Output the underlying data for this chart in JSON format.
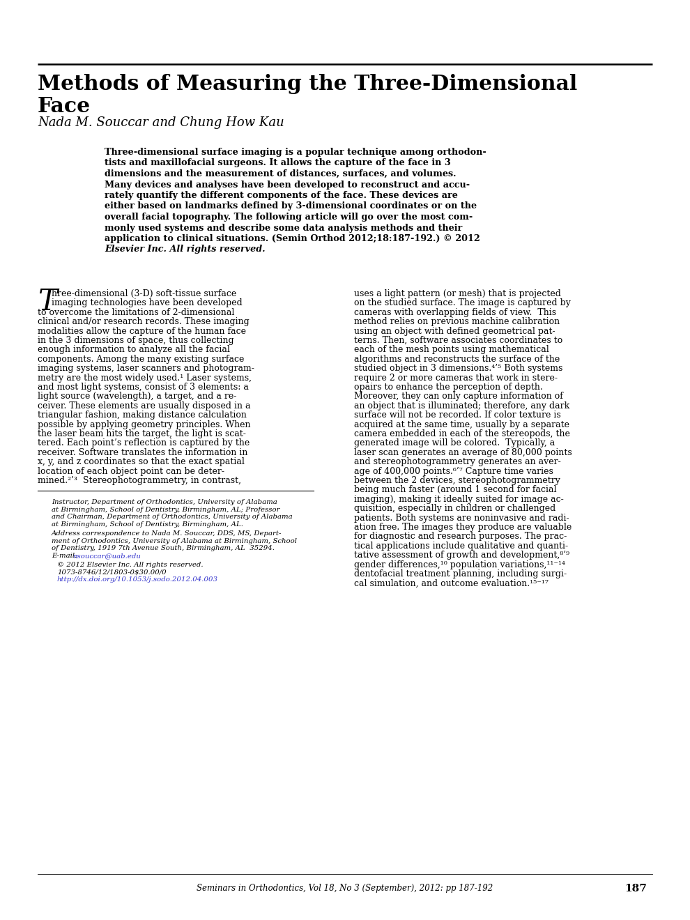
{
  "title_line1": "Methods of Measuring the Three-Dimensional",
  "title_line2": "Face",
  "authors": "Nada M. Souccar and Chung How Kau",
  "abstract_bold": "Three-dimensional surface imaging is a popular technique among orthodontists and maxillofacial surgeons. It allows the capture of the face in 3 dimensions and the measurement of distances, surfaces, and volumes. Many devices and analyses have been developed to reconstruct and accurately quantify the different components of the face. These devices are either based on landmarks defined by 3-dimensional coordinates or on the overall facial topography. The following article will go over the most commonly used systems and describe some data analysis methods and their application to clinical situations. (Semin Orthod 2012;18:187-192.) © 2012",
  "abstract_italic": "Elsevier Inc. All rights reserved.",
  "col1_lines": [
    "hree-dimensional (3-D) soft-tissue surface",
    "imaging technologies have been developed",
    "to overcome the limitations of 2-dimensional",
    "clinical and/or research records. These imaging",
    "modalities allow the capture of the human face",
    "in the 3 dimensions of space, thus collecting",
    "enough information to analyze all the facial",
    "components. Among the many existing surface",
    "imaging systems, laser scanners and photogram-",
    "metry are the most widely used.¹ Laser systems,",
    "and most light systems, consist of 3 elements: a",
    "light source (wavelength), a target, and a re-",
    "ceiver. These elements are usually disposed in a",
    "triangular fashion, making distance calculation",
    "possible by applying geometry principles. When",
    "the laser beam hits the target, the light is scat-",
    "tered. Each point’s reflection is captured by the",
    "receiver. Software translates the information in",
    "x, y, and z coordinates so that the exact spatial",
    "location of each object point can be deter-",
    "mined.²’³  Stereophotogrammetry, in contrast,"
  ],
  "col2_lines": [
    "uses a light pattern (or mesh) that is projected",
    "on the studied surface. The image is captured by",
    "cameras with overlapping fields of view.  This",
    "method relies on previous machine calibration",
    "using an object with defined geometrical pat-",
    "terns. Then, software associates coordinates to",
    "each of the mesh points using mathematical",
    "algorithms and reconstructs the surface of the",
    "studied object in 3 dimensions.⁴’⁵ Both systems",
    "require 2 or more cameras that work in stere-",
    "opairs to enhance the perception of depth.",
    "Moreover, they can only capture information of",
    "an object that is illuminated; therefore, any dark",
    "surface will not be recorded. If color texture is",
    "acquired at the same time, usually by a separate",
    "camera embedded in each of the stereopods, the",
    "generated image will be colored.  Typically, a",
    "laser scan generates an average of 80,000 points",
    "and stereophotogrammetry generates an aver-",
    "age of 400,000 points.⁶’⁷ Capture time varies",
    "between the 2 devices, stereophotogrammetry",
    "being much faster (around 1 second for facial",
    "imaging), making it ideally suited for image ac-",
    "quisition, especially in children or challenged",
    "patients. Both systems are noninvasive and radi-",
    "ation free. The images they produce are valuable",
    "for diagnostic and research purposes. The prac-",
    "tical applications include qualitative and quanti-",
    "tative assessment of growth and development,⁸’⁹",
    "gender differences,¹⁰ population variations,¹¹⁻¹⁴",
    "dentofacial treatment planning, including surgi-",
    "cal simulation, and outcome evaluation.¹⁵⁻¹⁷"
  ],
  "fn1_lines": [
    "Instructor, Department of Orthodontics, University of Alabama",
    "at Birmingham, School of Dentistry, Birmingham, AL; Professor",
    "and Chairman, Department of Orthodontics, University of Alabama",
    "at Birmingham, School of Dentistry, Birmingham, AL."
  ],
  "fn2_lines": [
    "Address correspondence to Nada M. Souccar, DDS, MS, Depart-",
    "ment of Orthodontics, University of Alabama at Birmingham, School",
    "of Dentistry, 1919 7th Avenue South, Birmingham, AL  35294.",
    "E-mail: nsouccar@uab.edu"
  ],
  "fn3_line1": "© 2012 Elsevier Inc. All rights reserved.",
  "fn3_line2": "1073-8746/12/1803-0$30.00/0",
  "fn3_line3": "http://dx.doi.org/10.1053/j.sodo.2012.04.003",
  "footer": "Seminars in Orthodontics, Vol 18, No 3 (September), 2012: pp 187-192",
  "page_num": "187",
  "bg_color": "#ffffff",
  "text_color": "#000000",
  "link_color": "#3333cc"
}
